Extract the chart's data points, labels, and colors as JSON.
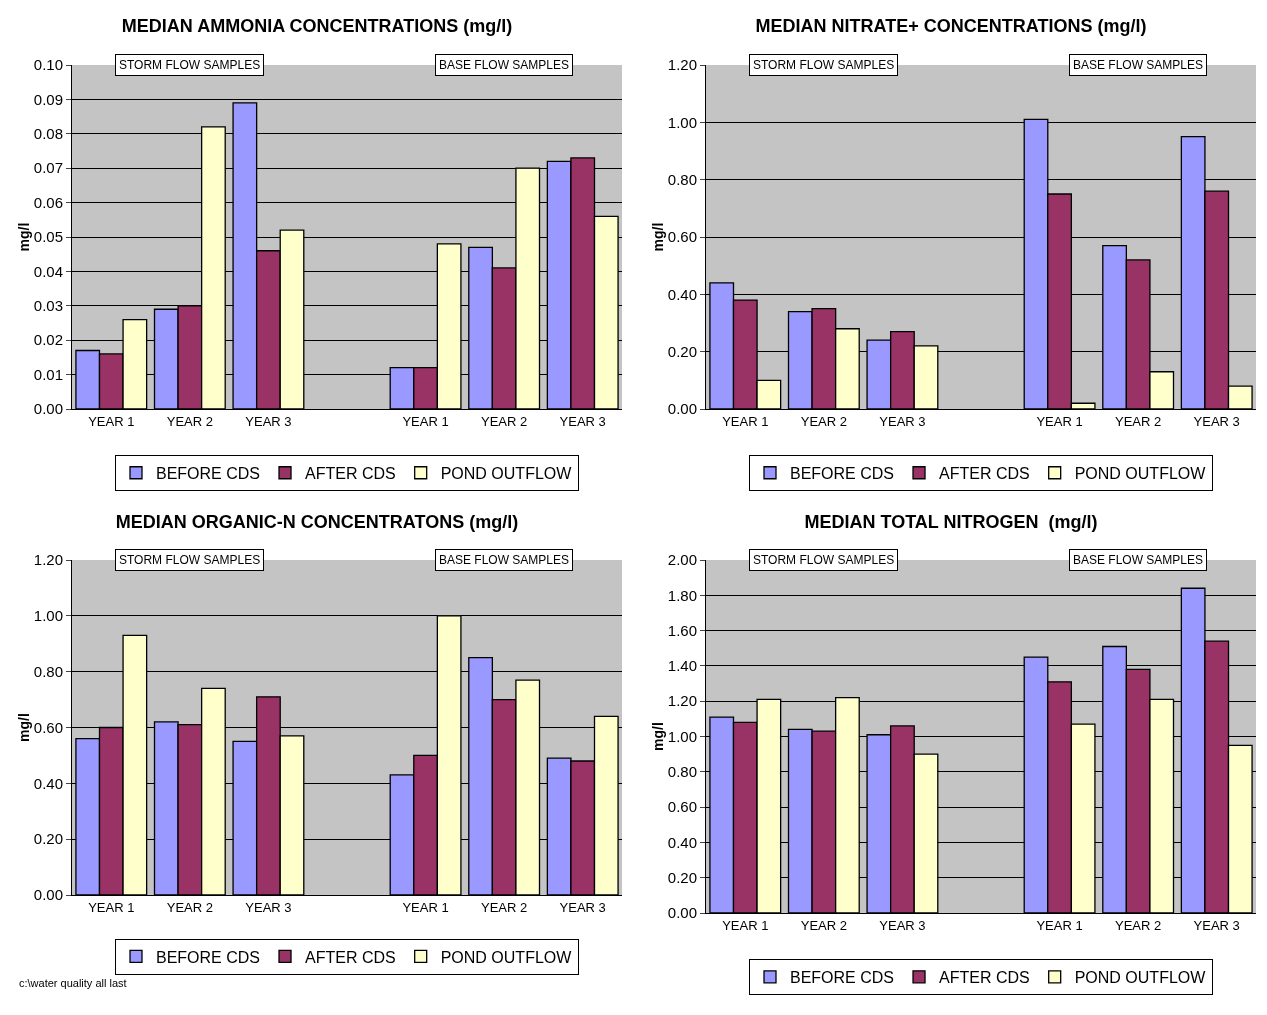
{
  "chart_data": [
    {
      "type": "bar",
      "title": "MEDIAN AMMONIA CONCENTRATIONS (mg/l)",
      "ylabel": "mg/l",
      "categories": [
        "YEAR 1",
        "YEAR 2",
        "YEAR 3",
        null,
        "YEAR 1",
        "YEAR 2",
        "YEAR 3"
      ],
      "series": [
        {
          "name": "BEFORE CDS",
          "color": "#9999ff",
          "values": [
            0.017,
            0.029,
            0.089,
            null,
            0.012,
            0.047,
            0.072
          ]
        },
        {
          "name": "AFTER CDS",
          "color": "#993366",
          "values": [
            0.016,
            0.03,
            0.046,
            null,
            0.012,
            0.041,
            0.073
          ]
        },
        {
          "name": "POND OUTFLOW",
          "color": "#ffffcc",
          "values": [
            0.026,
            0.082,
            0.052,
            null,
            0.048,
            0.07,
            0.056
          ]
        }
      ],
      "ylim": [
        0,
        0.1
      ],
      "yticks": [
        {
          "value": 0,
          "label": "0.00"
        },
        {
          "value": 0.01,
          "label": "0.01"
        },
        {
          "value": 0.02,
          "label": "0.02"
        },
        {
          "value": 0.03,
          "label": "0.03"
        },
        {
          "value": 0.04,
          "label": "0.04"
        },
        {
          "value": 0.05,
          "label": "0.05"
        },
        {
          "value": 0.06,
          "label": "0.06"
        },
        {
          "value": 0.07,
          "label": "0.07"
        },
        {
          "value": 0.08,
          "label": "0.08"
        },
        {
          "value": 0.09,
          "label": "0.09"
        },
        {
          "value": 0.1,
          "label": "0.10"
        }
      ],
      "grid": "y",
      "legend": "bottom",
      "annotations": [
        "STORM FLOW SAMPLES",
        "BASE FLOW SAMPLES"
      ]
    },
    {
      "type": "bar",
      "title": "MEDIAN NITRATE+ CONCENTRATIONS (mg/l)",
      "ylabel": "mg/l",
      "categories": [
        "YEAR 1",
        "YEAR 2",
        "YEAR 3",
        null,
        "YEAR 1",
        "YEAR 2",
        "YEAR 3"
      ],
      "series": [
        {
          "name": "BEFORE CDS",
          "color": "#9999ff",
          "values": [
            0.44,
            0.34,
            0.24,
            null,
            1.01,
            0.57,
            0.95
          ]
        },
        {
          "name": "AFTER CDS",
          "color": "#993366",
          "values": [
            0.38,
            0.35,
            0.27,
            null,
            0.75,
            0.52,
            0.76
          ]
        },
        {
          "name": "POND OUTFLOW",
          "color": "#ffffcc",
          "values": [
            0.1,
            0.28,
            0.22,
            null,
            0.02,
            0.13,
            0.08
          ]
        }
      ],
      "ylim": [
        0,
        1.2
      ],
      "yticks": [
        {
          "value": 0,
          "label": "0.00"
        },
        {
          "value": 0.2,
          "label": "0.20"
        },
        {
          "value": 0.4,
          "label": "0.40"
        },
        {
          "value": 0.6,
          "label": "0.60"
        },
        {
          "value": 0.8,
          "label": "0.80"
        },
        {
          "value": 1,
          "label": "1.00"
        },
        {
          "value": 1.2,
          "label": "1.20"
        }
      ],
      "grid": "y",
      "legend": "bottom",
      "annotations": [
        "STORM FLOW SAMPLES",
        "BASE FLOW SAMPLES"
      ]
    },
    {
      "type": "bar",
      "title": "MEDIAN ORGANIC-N CONCENTRATONS (mg/l)",
      "ylabel": "mg/l",
      "categories": [
        "YEAR 1",
        "YEAR 2",
        "YEAR 3",
        null,
        "YEAR 1",
        "YEAR 2",
        "YEAR 3"
      ],
      "series": [
        {
          "name": "BEFORE CDS",
          "color": "#9999ff",
          "values": [
            0.56,
            0.62,
            0.55,
            null,
            0.43,
            0.85,
            0.49
          ]
        },
        {
          "name": "AFTER CDS",
          "color": "#993366",
          "values": [
            0.6,
            0.61,
            0.71,
            null,
            0.5,
            0.7,
            0.48
          ]
        },
        {
          "name": "POND OUTFLOW",
          "color": "#ffffcc",
          "values": [
            0.93,
            0.74,
            0.57,
            null,
            1.0,
            0.77,
            0.64
          ]
        }
      ],
      "ylim": [
        0,
        1.2
      ],
      "yticks": [
        {
          "value": 0,
          "label": "0.00"
        },
        {
          "value": 0.2,
          "label": "0.20"
        },
        {
          "value": 0.4,
          "label": "0.40"
        },
        {
          "value": 0.6,
          "label": "0.60"
        },
        {
          "value": 0.8,
          "label": "0.80"
        },
        {
          "value": 1,
          "label": "1.00"
        },
        {
          "value": 1.2,
          "label": "1.20"
        }
      ],
      "grid": "y",
      "legend": "bottom",
      "annotations": [
        "STORM FLOW SAMPLES",
        "BASE FLOW SAMPLES",
        "c:\\water quality all last"
      ]
    },
    {
      "type": "bar",
      "title": "MEDIAN TOTAL NITROGEN  (mg/l)",
      "ylabel": "mg/l",
      "categories": [
        "YEAR 1",
        "YEAR 2",
        "YEAR 3",
        null,
        "YEAR 1",
        "YEAR 2",
        "YEAR 3"
      ],
      "series": [
        {
          "name": "BEFORE CDS",
          "color": "#9999ff",
          "values": [
            1.11,
            1.04,
            1.01,
            null,
            1.45,
            1.51,
            1.84
          ]
        },
        {
          "name": "AFTER CDS",
          "color": "#993366",
          "values": [
            1.08,
            1.03,
            1.06,
            null,
            1.31,
            1.38,
            1.54
          ]
        },
        {
          "name": "POND OUTFLOW",
          "color": "#ffffcc",
          "values": [
            1.21,
            1.22,
            0.9,
            null,
            1.07,
            1.21,
            0.95
          ]
        }
      ],
      "ylim": [
        0,
        2
      ],
      "yticks": [
        {
          "value": 0,
          "label": "0.00"
        },
        {
          "value": 0.2,
          "label": "0.20"
        },
        {
          "value": 0.4,
          "label": "0.40"
        },
        {
          "value": 0.6,
          "label": "0.60"
        },
        {
          "value": 0.8,
          "label": "0.80"
        },
        {
          "value": 1,
          "label": "1.00"
        },
        {
          "value": 1.2,
          "label": "1.20"
        },
        {
          "value": 1.4,
          "label": "1.40"
        },
        {
          "value": 1.6,
          "label": "1.60"
        },
        {
          "value": 1.8,
          "label": "1.80"
        },
        {
          "value": 2,
          "label": "2.00"
        }
      ],
      "grid": "y",
      "legend": "bottom",
      "annotations": [
        "STORM FLOW SAMPLES",
        "BASE FLOW SAMPLES"
      ]
    }
  ]
}
